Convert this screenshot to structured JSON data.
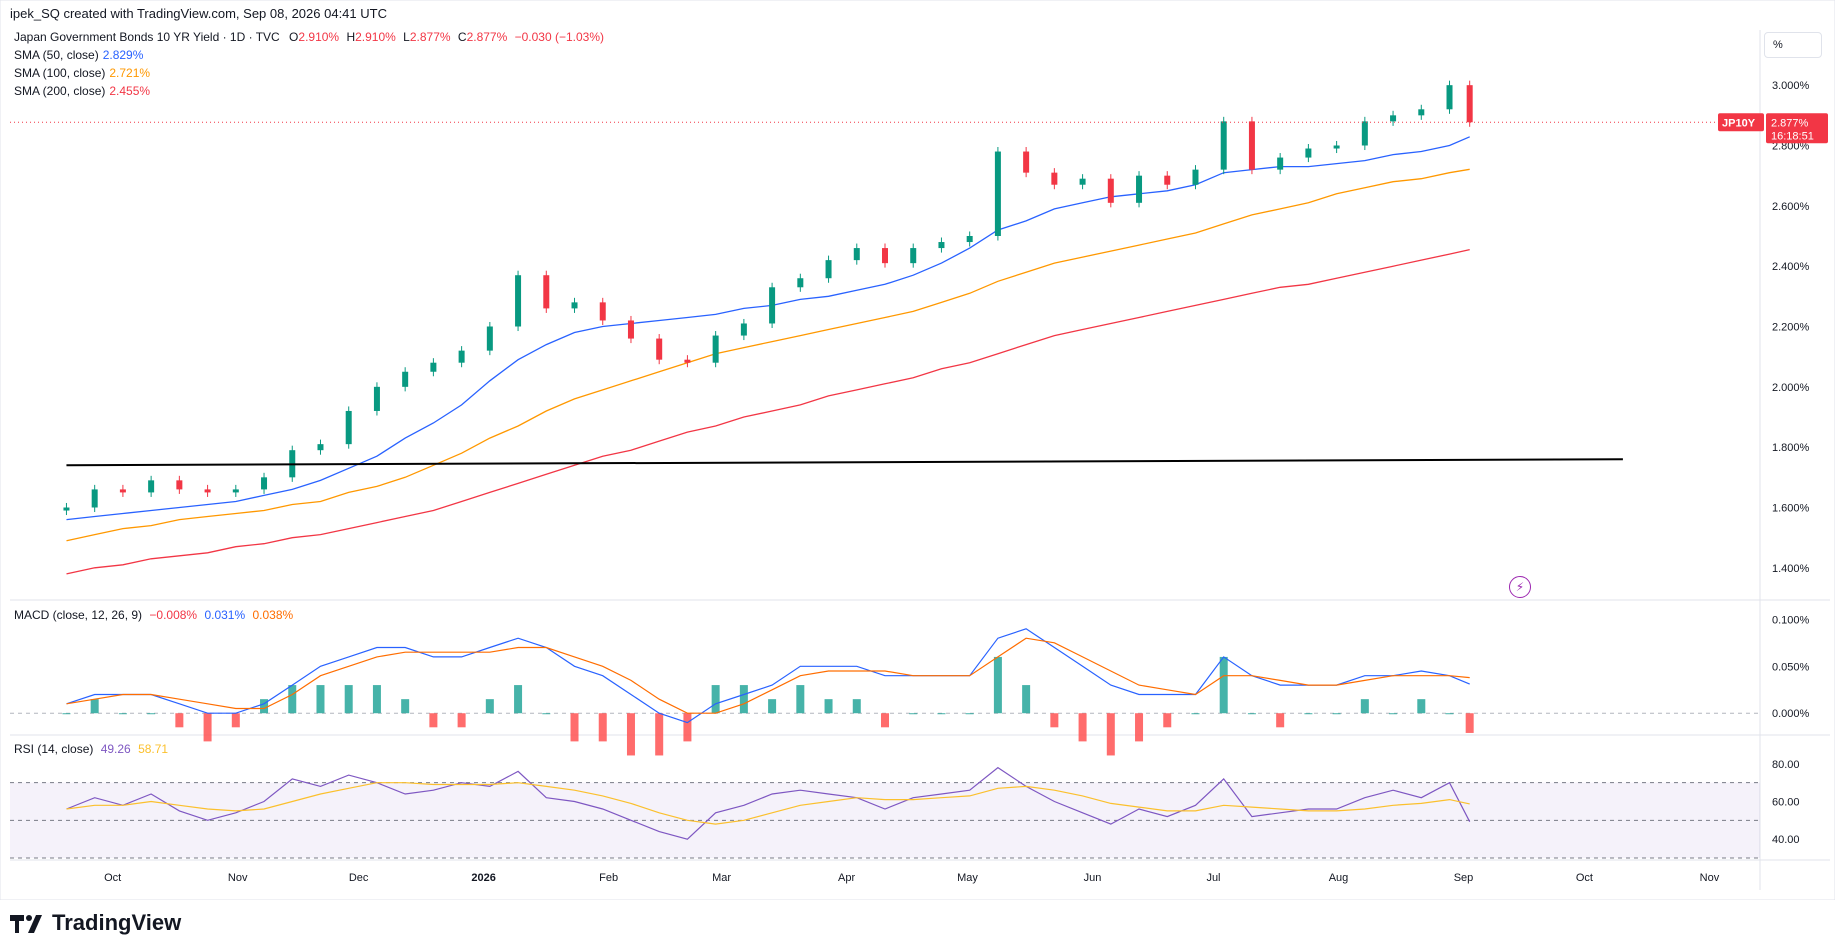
{
  "header": {
    "watermark_text": "ipek_SQ created with TradingView.com, Sep 08, 2026 04:41 UTC",
    "percent_button_label": "%"
  },
  "main_pane": {
    "symbol_line": {
      "name": "Japan Government Bonds 10 YR Yield · 1D · TVC",
      "o_label": "O",
      "o_value": "2.910%",
      "h_label": "H",
      "h_value": "2.910%",
      "l_label": "L",
      "l_value": "2.877%",
      "c_label": "C",
      "c_value": "2.877%",
      "change": "−0.030 (−1.03%)"
    },
    "indicators": [
      {
        "label": "SMA (50, close)",
        "value": "2.829%",
        "color": "#2962ff"
      },
      {
        "label": "SMA (100, close)",
        "value": "2.721%",
        "color": "#ff9800"
      },
      {
        "label": "SMA (200, close)",
        "value": "2.455%",
        "color": "#f23645"
      }
    ],
    "price_badge": {
      "symbol": "JP10Y",
      "price": "2.877%",
      "countdown": "16:18:51",
      "color": "#f23645"
    },
    "y_ticks": [
      "3.000%",
      "2.800%",
      "2.600%",
      "2.400%",
      "2.200%",
      "2.000%",
      "1.800%",
      "1.600%",
      "1.400%"
    ]
  },
  "macd_pane": {
    "label": "MACD (close, 12, 26, 9)",
    "hist_value": "−0.008%",
    "macd_value": "0.031%",
    "signal_value": "0.038%",
    "y_ticks": [
      "0.100%",
      "0.050%",
      "0.000%"
    ]
  },
  "rsi_pane": {
    "label": "RSI (14, close)",
    "rsi_value": "49.26",
    "ma_value": "58.71",
    "y_ticks": [
      "80.00",
      "60.00",
      "40.00"
    ]
  },
  "x_axis": {
    "labels": [
      "Oct",
      "Nov",
      "Dec",
      "2026",
      "Feb",
      "Mar",
      "Apr",
      "May",
      "Jun",
      "Jul",
      "Aug",
      "Sep",
      "Oct",
      "Nov"
    ]
  },
  "footer": {
    "logo_text": "TradingView"
  },
  "chart_data": {
    "type": "line",
    "title": "Japan Government Bonds 10 YR Yield · 1D · TVC",
    "x": [
      "2025-09-24",
      "2025-10-01",
      "2025-10-08",
      "2025-10-15",
      "2025-10-22",
      "2025-10-29",
      "2025-11-05",
      "2025-11-12",
      "2025-11-19",
      "2025-11-26",
      "2025-12-03",
      "2025-12-10",
      "2025-12-17",
      "2025-12-24",
      "2025-12-31",
      "2026-01-07",
      "2026-01-14",
      "2026-01-21",
      "2026-01-28",
      "2026-02-04",
      "2026-02-11",
      "2026-02-18",
      "2026-02-25",
      "2026-03-04",
      "2026-03-11",
      "2026-03-18",
      "2026-03-25",
      "2026-04-01",
      "2026-04-08",
      "2026-04-15",
      "2026-04-22",
      "2026-04-29",
      "2026-05-06",
      "2026-05-13",
      "2026-05-20",
      "2026-05-27",
      "2026-06-03",
      "2026-06-10",
      "2026-06-17",
      "2026-06-24",
      "2026-07-01",
      "2026-07-08",
      "2026-07-15",
      "2026-07-22",
      "2026-07-29",
      "2026-08-05",
      "2026-08-12",
      "2026-08-19",
      "2026-08-26",
      "2026-09-02",
      "2026-09-07"
    ],
    "series": [
      {
        "name": "JP10Y",
        "values": [
          1.6,
          1.66,
          1.65,
          1.69,
          1.66,
          1.65,
          1.66,
          1.7,
          1.79,
          1.81,
          1.92,
          2.0,
          2.05,
          2.08,
          2.12,
          2.2,
          2.37,
          2.26,
          2.28,
          2.22,
          2.16,
          2.09,
          2.08,
          2.17,
          2.21,
          2.33,
          2.36,
          2.42,
          2.46,
          2.41,
          2.46,
          2.48,
          2.5,
          2.78,
          2.71,
          2.67,
          2.69,
          2.61,
          2.7,
          2.67,
          2.72,
          2.88,
          2.72,
          2.76,
          2.79,
          2.8,
          2.88,
          2.9,
          2.92,
          3.0,
          2.877
        ]
      },
      {
        "name": "SMA (50, close)",
        "values": [
          1.56,
          1.57,
          1.58,
          1.59,
          1.6,
          1.61,
          1.62,
          1.64,
          1.66,
          1.69,
          1.73,
          1.77,
          1.83,
          1.88,
          1.94,
          2.02,
          2.09,
          2.14,
          2.18,
          2.2,
          2.21,
          2.22,
          2.23,
          2.24,
          2.26,
          2.27,
          2.29,
          2.3,
          2.32,
          2.34,
          2.37,
          2.41,
          2.46,
          2.52,
          2.55,
          2.59,
          2.61,
          2.63,
          2.64,
          2.65,
          2.67,
          2.71,
          2.72,
          2.73,
          2.73,
          2.74,
          2.75,
          2.77,
          2.78,
          2.8,
          2.829
        ]
      },
      {
        "name": "SMA (100, close)",
        "values": [
          1.49,
          1.51,
          1.53,
          1.54,
          1.56,
          1.57,
          1.58,
          1.59,
          1.61,
          1.62,
          1.65,
          1.67,
          1.7,
          1.74,
          1.78,
          1.83,
          1.87,
          1.92,
          1.96,
          1.99,
          2.02,
          2.05,
          2.08,
          2.11,
          2.13,
          2.15,
          2.17,
          2.19,
          2.21,
          2.23,
          2.25,
          2.28,
          2.31,
          2.35,
          2.38,
          2.41,
          2.43,
          2.45,
          2.47,
          2.49,
          2.51,
          2.54,
          2.57,
          2.59,
          2.61,
          2.64,
          2.66,
          2.68,
          2.69,
          2.71,
          2.721
        ]
      },
      {
        "name": "SMA (200, close)",
        "values": [
          1.38,
          1.4,
          1.41,
          1.43,
          1.44,
          1.45,
          1.47,
          1.48,
          1.5,
          1.51,
          1.53,
          1.55,
          1.57,
          1.59,
          1.62,
          1.65,
          1.68,
          1.71,
          1.74,
          1.77,
          1.79,
          1.82,
          1.85,
          1.87,
          1.9,
          1.92,
          1.94,
          1.97,
          1.99,
          2.01,
          2.03,
          2.06,
          2.08,
          2.11,
          2.14,
          2.17,
          2.19,
          2.21,
          2.23,
          2.25,
          2.27,
          2.29,
          2.31,
          2.33,
          2.34,
          2.36,
          2.38,
          2.4,
          2.42,
          2.44,
          2.455
        ]
      }
    ],
    "ylim": [
      1.3,
      3.1
    ],
    "trendline": {
      "from": [
        "2025-09-24",
        1.74
      ],
      "to": [
        "2026-10-15",
        1.76
      ]
    },
    "macd": {
      "ylim": [
        -0.02,
        0.11
      ],
      "macd": [
        0.01,
        0.02,
        0.02,
        0.02,
        0.01,
        0.0,
        0.0,
        0.01,
        0.03,
        0.05,
        0.06,
        0.07,
        0.07,
        0.06,
        0.06,
        0.07,
        0.08,
        0.07,
        0.05,
        0.04,
        0.02,
        0.0,
        -0.01,
        0.01,
        0.02,
        0.03,
        0.05,
        0.05,
        0.05,
        0.04,
        0.04,
        0.04,
        0.04,
        0.08,
        0.09,
        0.07,
        0.05,
        0.03,
        0.02,
        0.02,
        0.02,
        0.06,
        0.04,
        0.03,
        0.03,
        0.03,
        0.04,
        0.04,
        0.045,
        0.04,
        0.031
      ],
      "signal": [
        0.01,
        0.015,
        0.02,
        0.02,
        0.015,
        0.01,
        0.005,
        0.005,
        0.02,
        0.04,
        0.05,
        0.06,
        0.065,
        0.065,
        0.065,
        0.065,
        0.07,
        0.07,
        0.06,
        0.05,
        0.035,
        0.015,
        0.0,
        0.0,
        0.01,
        0.025,
        0.04,
        0.045,
        0.045,
        0.045,
        0.04,
        0.04,
        0.04,
        0.06,
        0.08,
        0.075,
        0.06,
        0.045,
        0.03,
        0.025,
        0.02,
        0.04,
        0.04,
        0.035,
        0.03,
        0.03,
        0.035,
        0.04,
        0.04,
        0.04,
        0.038
      ]
    },
    "rsi": {
      "ylim": [
        30,
        90
      ],
      "overbought": 70,
      "middle": 50,
      "oversold": 30,
      "rsi": [
        56,
        62,
        58,
        64,
        55,
        50,
        54,
        60,
        72,
        68,
        74,
        70,
        64,
        66,
        70,
        68,
        76,
        62,
        60,
        56,
        50,
        44,
        40,
        54,
        58,
        64,
        66,
        64,
        62,
        56,
        62,
        64,
        66,
        78,
        68,
        60,
        54,
        48,
        56,
        52,
        58,
        72,
        52,
        54,
        56,
        56,
        62,
        66,
        62,
        70,
        49.26
      ],
      "rsi_ma": [
        56,
        58,
        58,
        60,
        58,
        56,
        55,
        56,
        60,
        64,
        67,
        70,
        70,
        69,
        69,
        69,
        70,
        68,
        66,
        63,
        59,
        54,
        50,
        48,
        50,
        54,
        58,
        60,
        62,
        61,
        61,
        62,
        63,
        67,
        68,
        66,
        63,
        59,
        57,
        55,
        55,
        58,
        57,
        56,
        55,
        55,
        56,
        58,
        59,
        61,
        58.71
      ]
    }
  }
}
